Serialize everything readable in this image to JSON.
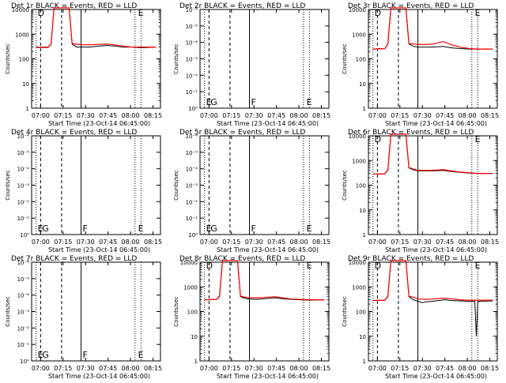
{
  "chart_data": [
    {
      "type": "line",
      "title": "Det 1r BLACK = Events, RED = LLD",
      "xlabel": "Start Time (23-Oct-14 06:45:00)",
      "ylabel": "Counts/sec",
      "x_tick_labels": [
        "07:00",
        "07:15",
        "07:30",
        "07:45",
        "08:00",
        "08:15"
      ],
      "y_tick_labels": [
        "1",
        "10",
        "100",
        "1000",
        "10000"
      ],
      "scale": "log",
      "ylim": [
        1,
        10000
      ],
      "has_data": true,
      "markers": [
        "D",
        "",
        "",
        "E"
      ],
      "series": [
        {
          "color": "#000000",
          "points": [
            [
              0,
              300
            ],
            [
              8,
              300
            ],
            [
              10,
              400
            ],
            [
              12,
              15000
            ],
            [
              22,
              15000
            ],
            [
              24,
              400
            ],
            [
              27,
              300
            ],
            [
              30,
              300
            ],
            [
              35,
              300
            ],
            [
              40,
              320
            ],
            [
              47,
              350
            ],
            [
              52,
              330
            ],
            [
              58,
              300
            ],
            [
              64,
              300
            ],
            [
              70,
              280
            ],
            [
              80,
              300
            ]
          ]
        },
        {
          "color": "#ff0000",
          "points": [
            [
              0,
              290
            ],
            [
              8,
              290
            ],
            [
              10,
              400
            ],
            [
              12,
              15000
            ],
            [
              22,
              15000
            ],
            [
              24,
              420
            ],
            [
              27,
              390
            ],
            [
              30,
              370
            ],
            [
              35,
              370
            ],
            [
              40,
              380
            ],
            [
              47,
              400
            ],
            [
              52,
              370
            ],
            [
              58,
              330
            ],
            [
              64,
              300
            ],
            [
              70,
              300
            ],
            [
              80,
              300
            ]
          ]
        }
      ]
    },
    {
      "type": "line",
      "title": "Det 2r BLACK = Events, RED = LLD",
      "xlabel": "Start Time (23-Oct-14 06:45:00)",
      "ylabel": "Counts/sec",
      "x_tick_labels": [
        "07:00",
        "07:15",
        "07:30",
        "07:45",
        "08:00",
        "08:15"
      ],
      "y_tick_labels": [
        "10⁰",
        "10⁻¹",
        "10⁻²",
        "10⁻³",
        "10⁻⁴",
        "10⁻⁵",
        "10⁻⁶"
      ],
      "scale": "empty",
      "has_data": false,
      "markers": [
        "E",
        "G",
        "F",
        "E"
      ],
      "series": []
    },
    {
      "type": "line",
      "title": "Det 3r BLACK = Events, RED = LLD",
      "xlabel": "Start Time (23-Oct-14 06:45:00)",
      "ylabel": "Counts/sec",
      "x_tick_labels": [
        "07:00",
        "07:15",
        "07:30",
        "07:45",
        "08:00",
        "08:15"
      ],
      "y_tick_labels": [
        "1",
        "10",
        "100",
        "1000",
        "10000"
      ],
      "scale": "log",
      "ylim": [
        1,
        10000
      ],
      "has_data": true,
      "markers": [
        "D",
        "",
        "",
        "E"
      ],
      "series": [
        {
          "color": "#000000",
          "points": [
            [
              0,
              250
            ],
            [
              8,
              260
            ],
            [
              10,
              400
            ],
            [
              12,
              15000
            ],
            [
              22,
              15000
            ],
            [
              24,
              400
            ],
            [
              27,
              320
            ],
            [
              30,
              300
            ],
            [
              35,
              300
            ],
            [
              40,
              300
            ],
            [
              47,
              320
            ],
            [
              52,
              280
            ],
            [
              58,
              260
            ],
            [
              64,
              250
            ],
            [
              70,
              250
            ],
            [
              80,
              250
            ]
          ]
        },
        {
          "color": "#ff0000",
          "points": [
            [
              0,
              250
            ],
            [
              8,
              260
            ],
            [
              10,
              400
            ],
            [
              12,
              15000
            ],
            [
              22,
              15000
            ],
            [
              24,
              420
            ],
            [
              27,
              400
            ],
            [
              30,
              380
            ],
            [
              35,
              380
            ],
            [
              40,
              400
            ],
            [
              47,
              500
            ],
            [
              52,
              380
            ],
            [
              58,
              300
            ],
            [
              64,
              260
            ],
            [
              70,
              250
            ],
            [
              80,
              250
            ]
          ]
        }
      ]
    },
    {
      "type": "line",
      "title": "Det 4r BLACK = Events, RED = LLD",
      "xlabel": "Start Time (23-Oct-14 06:45:00)",
      "ylabel": "Counts/sec",
      "x_tick_labels": [
        "07:00",
        "07:15",
        "07:30",
        "07:45",
        "08:00",
        "08:15"
      ],
      "y_tick_labels": [
        "10⁰",
        "10⁻¹",
        "10⁻²",
        "10⁻³",
        "10⁻⁴",
        "10⁻⁵",
        "10⁻⁶"
      ],
      "scale": "empty",
      "has_data": false,
      "markers": [
        "E",
        "G",
        "F",
        "E"
      ],
      "series": []
    },
    {
      "type": "line",
      "title": "Det 5r BLACK = Events, RED = LLD",
      "xlabel": "Start Time (23-Oct-14 06:45:00)",
      "ylabel": "Counts/sec",
      "x_tick_labels": [
        "07:00",
        "07:15",
        "07:30",
        "07:45",
        "08:00",
        "08:15"
      ],
      "y_tick_labels": [
        "10⁰",
        "10⁻¹",
        "10⁻²",
        "10⁻³",
        "10⁻⁴",
        "10⁻⁵",
        "10⁻⁶"
      ],
      "scale": "empty",
      "has_data": false,
      "markers": [
        "E",
        "G",
        "F",
        "E"
      ],
      "series": []
    },
    {
      "type": "line",
      "title": "Det 6r BLACK = Events, RED = LLD",
      "xlabel": "Start Time (23-Oct-14 06:45:00)",
      "ylabel": "Counts/sec",
      "x_tick_labels": [
        "07:00",
        "07:15",
        "07:30",
        "07:45",
        "08:00",
        "08:15"
      ],
      "y_tick_labels": [
        "1",
        "10",
        "100",
        "1000",
        "10000"
      ],
      "scale": "log",
      "ylim": [
        1,
        10000
      ],
      "has_data": true,
      "markers": [
        "D",
        "",
        "",
        "E"
      ],
      "series": [
        {
          "color": "#000000",
          "points": [
            [
              0,
              280
            ],
            [
              8,
              290
            ],
            [
              10,
              400
            ],
            [
              12,
              15000
            ],
            [
              22,
              15000
            ],
            [
              24,
              500
            ],
            [
              27,
              420
            ],
            [
              30,
              380
            ],
            [
              35,
              380
            ],
            [
              40,
              380
            ],
            [
              47,
              400
            ],
            [
              52,
              360
            ],
            [
              58,
              330
            ],
            [
              64,
              310
            ],
            [
              70,
              300
            ],
            [
              80,
              300
            ]
          ]
        },
        {
          "color": "#ff0000",
          "points": [
            [
              0,
              280
            ],
            [
              8,
              290
            ],
            [
              10,
              420
            ],
            [
              12,
              15000
            ],
            [
              22,
              15000
            ],
            [
              24,
              520
            ],
            [
              27,
              450
            ],
            [
              30,
              400
            ],
            [
              35,
              400
            ],
            [
              40,
              400
            ],
            [
              47,
              430
            ],
            [
              52,
              380
            ],
            [
              58,
              340
            ],
            [
              64,
              320
            ],
            [
              70,
              300
            ],
            [
              80,
              300
            ]
          ]
        }
      ]
    },
    {
      "type": "line",
      "title": "Det 7r BLACK = Events, RED = LLD",
      "xlabel": "Start Time (23-Oct-14 06:45:00)",
      "ylabel": "Counts/sec",
      "x_tick_labels": [
        "07:00",
        "07:15",
        "07:30",
        "07:45",
        "08:00",
        "08:15"
      ],
      "y_tick_labels": [
        "10⁰",
        "10⁻¹",
        "10⁻²",
        "10⁻³",
        "10⁻⁴",
        "10⁻⁵",
        "10⁻⁶"
      ],
      "scale": "empty",
      "has_data": false,
      "markers": [
        "E",
        "G",
        "F",
        "E"
      ],
      "series": []
    },
    {
      "type": "line",
      "title": "Det 8r BLACK = Events, RED = LLD",
      "xlabel": "Start Time (23-Oct-14 06:45:00)",
      "ylabel": "Counts/sec",
      "x_tick_labels": [
        "07:00",
        "07:15",
        "07:30",
        "07:45",
        "08:00",
        "08:15"
      ],
      "y_tick_labels": [
        "1",
        "10",
        "100",
        "1000",
        "10000"
      ],
      "scale": "log",
      "ylim": [
        1,
        10000
      ],
      "has_data": true,
      "markers": [
        "D",
        "",
        "",
        "E"
      ],
      "series": [
        {
          "color": "#000000",
          "points": [
            [
              0,
              300
            ],
            [
              8,
              310
            ],
            [
              10,
              400
            ],
            [
              12,
              15000
            ],
            [
              22,
              15000
            ],
            [
              24,
              400
            ],
            [
              27,
              340
            ],
            [
              30,
              320
            ],
            [
              35,
              310
            ],
            [
              40,
              330
            ],
            [
              47,
              360
            ],
            [
              52,
              330
            ],
            [
              58,
              310
            ],
            [
              64,
              300
            ],
            [
              70,
              290
            ],
            [
              80,
              300
            ]
          ]
        },
        {
          "color": "#ff0000",
          "points": [
            [
              0,
              300
            ],
            [
              8,
              310
            ],
            [
              10,
              420
            ],
            [
              12,
              15000
            ],
            [
              22,
              15000
            ],
            [
              24,
              420
            ],
            [
              27,
              380
            ],
            [
              30,
              360
            ],
            [
              35,
              360
            ],
            [
              40,
              370
            ],
            [
              47,
              400
            ],
            [
              52,
              360
            ],
            [
              58,
              320
            ],
            [
              64,
              310
            ],
            [
              70,
              300
            ],
            [
              80,
              300
            ]
          ]
        }
      ]
    },
    {
      "type": "line",
      "title": "Det 9r BLACK = Events, RED = LLD",
      "xlabel": "Start Time (23-Oct-14 06:45:00)",
      "ylabel": "Counts/sec",
      "x_tick_labels": [
        "07:00",
        "07:15",
        "07:30",
        "07:45",
        "08:00",
        "08:15"
      ],
      "y_tick_labels": [
        "1",
        "10",
        "100",
        "1000",
        "10000"
      ],
      "scale": "log",
      "ylim": [
        1,
        10000
      ],
      "has_data": true,
      "markers": [
        "D",
        "",
        "",
        "E"
      ],
      "series": [
        {
          "color": "#000000",
          "points": [
            [
              0,
              280
            ],
            [
              8,
              290
            ],
            [
              10,
              400
            ],
            [
              12,
              15000
            ],
            [
              22,
              15000
            ],
            [
              24,
              400
            ],
            [
              27,
              300
            ],
            [
              30,
              260
            ],
            [
              33,
              230
            ],
            [
              36,
              250
            ],
            [
              40,
              260
            ],
            [
              44,
              280
            ],
            [
              48,
              300
            ],
            [
              52,
              280
            ],
            [
              58,
              270
            ],
            [
              64,
              260
            ],
            [
              68,
              260
            ],
            [
              69,
              10
            ],
            [
              70,
              260
            ],
            [
              80,
              270
            ]
          ]
        },
        {
          "color": "#ff0000",
          "points": [
            [
              0,
              280
            ],
            [
              8,
              290
            ],
            [
              10,
              420
            ],
            [
              12,
              15000
            ],
            [
              22,
              15000
            ],
            [
              24,
              420
            ],
            [
              27,
              380
            ],
            [
              30,
              330
            ],
            [
              35,
              310
            ],
            [
              40,
              320
            ],
            [
              47,
              350
            ],
            [
              52,
              330
            ],
            [
              58,
              300
            ],
            [
              64,
              290
            ],
            [
              70,
              290
            ],
            [
              80,
              290
            ]
          ]
        }
      ]
    }
  ]
}
